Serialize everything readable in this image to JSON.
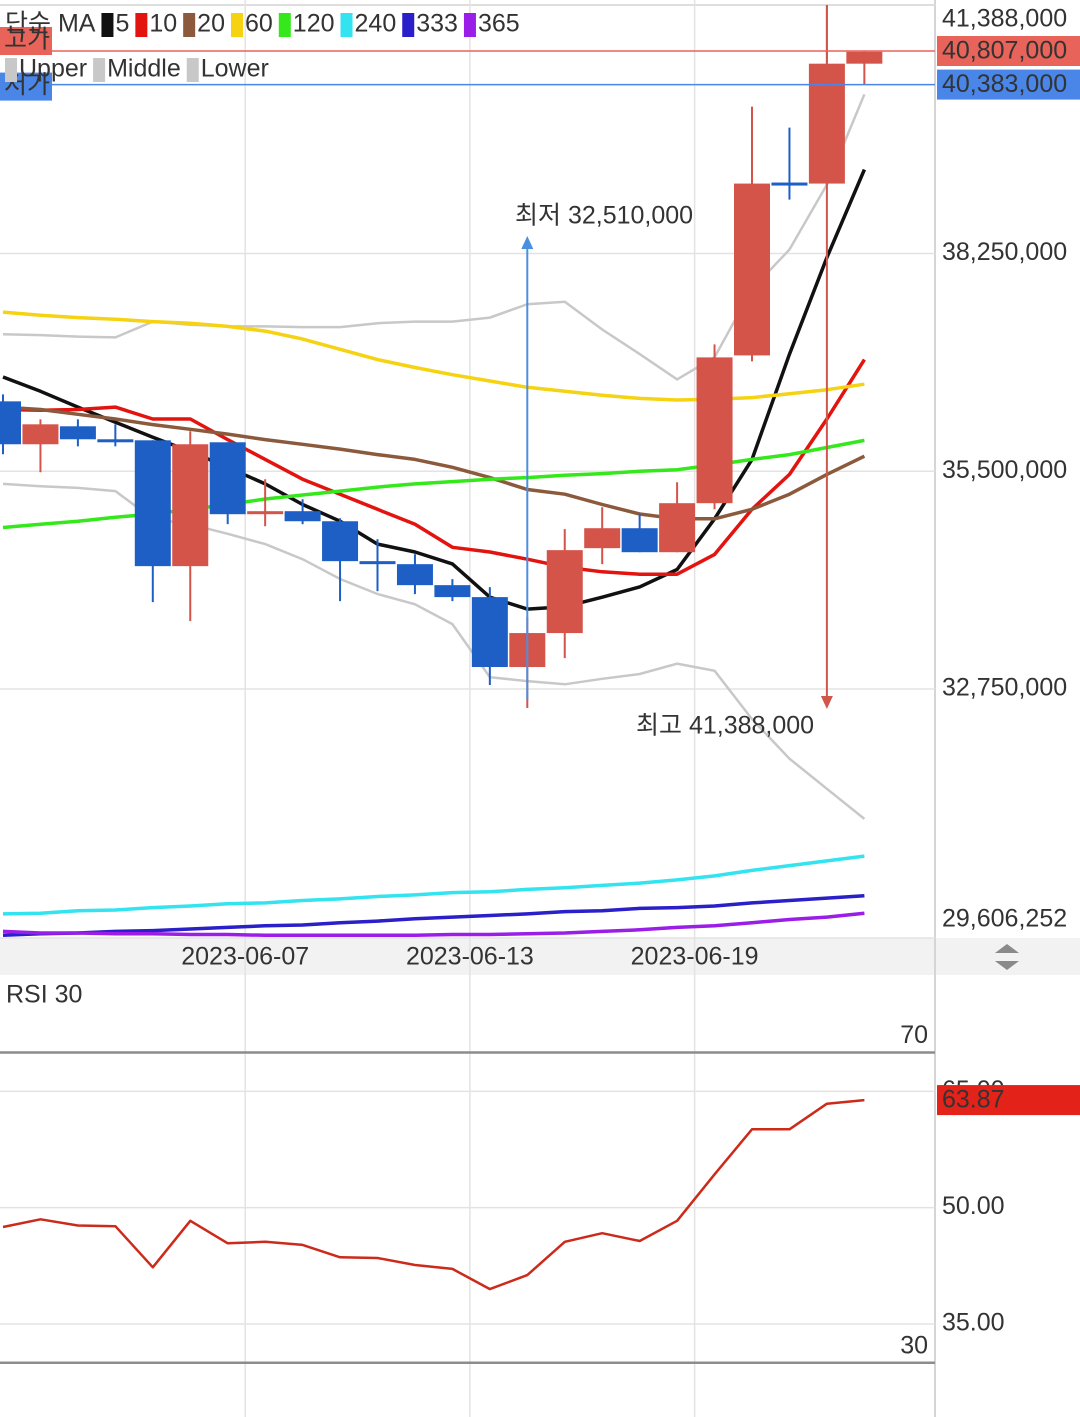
{
  "chart_data": [
    {
      "type": "candlestick",
      "legend_title": "단순 MA",
      "categories": [
        null,
        null,
        null,
        null,
        null,
        null,
        "2023-06-07",
        null,
        null,
        null,
        null,
        null,
        "2023-06-13",
        null,
        null,
        null,
        null,
        null,
        "2023-06-19",
        null,
        null,
        null,
        null,
        null
      ],
      "candles": {
        "up_color": "#d4544a",
        "down_color": "#1e5fc6",
        "open": [
          36383000,
          35841000,
          36068000,
          35904000,
          35891000,
          34302000,
          35866000,
          34958000,
          34996000,
          34869000,
          34365000,
          34327000,
          34062000,
          33911000,
          33028000,
          33457000,
          34529000,
          34781000,
          34478000,
          35097000,
          36963000,
          39146000,
          39133000,
          40647000
        ],
        "high": [
          36471000,
          36156000,
          36156000,
          36093000,
          35891000,
          36005000,
          35866000,
          35399000,
          35147000,
          34907000,
          34642000,
          34453000,
          34138000,
          34037000,
          33659000,
          34769000,
          35046000,
          34958000,
          35361000,
          37102000,
          40104000,
          39839000,
          41388000,
          40807000
        ],
        "low": [
          35715000,
          35488000,
          35815000,
          35815000,
          33848000,
          33608000,
          34832000,
          34806000,
          34832000,
          33860000,
          33986000,
          33949000,
          33860000,
          32801000,
          32510000,
          33141000,
          34327000,
          34478000,
          34478000,
          35021000,
          36888000,
          38931000,
          39108000,
          40383000
        ],
        "close": [
          35841000,
          36093000,
          35904000,
          35866000,
          34302000,
          35841000,
          34958000,
          34996000,
          34869000,
          34365000,
          34327000,
          34062000,
          33911000,
          33028000,
          33457000,
          34504000,
          34781000,
          34478000,
          35097000,
          36938000,
          39133000,
          39108000,
          40647000,
          40798000
        ]
      },
      "series": [
        {
          "name": "5",
          "color": "#111111",
          "values": [
            36690000,
            36510000,
            36310000,
            36120000,
            35930000,
            35750000,
            35550000,
            35340000,
            35080000,
            34870000,
            34580000,
            34480000,
            34330000,
            33910000,
            33760000,
            33790000,
            33910000,
            34040000,
            34260000,
            34900000,
            35650000,
            36980000,
            38200000,
            39310000
          ]
        },
        {
          "name": "10",
          "color": "#e3140f",
          "values": [
            36280000,
            36270000,
            36280000,
            36310000,
            36160000,
            36160000,
            35900000,
            35650000,
            35400000,
            35210000,
            35020000,
            34830000,
            34540000,
            34480000,
            34390000,
            34290000,
            34230000,
            34200000,
            34200000,
            34450000,
            35020000,
            35460000,
            36160000,
            36910000
          ]
        },
        {
          "name": "20",
          "color": "#8b5a3c",
          "values": [
            36310000,
            36280000,
            36220000,
            36160000,
            36090000,
            36030000,
            35970000,
            35900000,
            35840000,
            35780000,
            35710000,
            35650000,
            35550000,
            35420000,
            35270000,
            35210000,
            35080000,
            34960000,
            34900000,
            34900000,
            35020000,
            35210000,
            35460000,
            35690000
          ]
        },
        {
          "name": "60",
          "color": "#f5d312",
          "values": [
            37510000,
            37470000,
            37440000,
            37420000,
            37390000,
            37370000,
            37330000,
            37270000,
            37170000,
            37040000,
            36910000,
            36810000,
            36720000,
            36640000,
            36560000,
            36510000,
            36460000,
            36420000,
            36400000,
            36410000,
            36430000,
            36480000,
            36530000,
            36600000
          ]
        },
        {
          "name": "120",
          "color": "#35e81c",
          "values": [
            34790000,
            34830000,
            34870000,
            34920000,
            34960000,
            35020000,
            35080000,
            35150000,
            35200000,
            35250000,
            35300000,
            35340000,
            35370000,
            35400000,
            35420000,
            35450000,
            35470000,
            35500000,
            35520000,
            35580000,
            35650000,
            35710000,
            35800000,
            35890000
          ]
        },
        {
          "name": "240",
          "color": "#33e3f0",
          "values": [
            29910000,
            29920000,
            29950000,
            29960000,
            29990000,
            30010000,
            30040000,
            30050000,
            30080000,
            30100000,
            30130000,
            30150000,
            30180000,
            30190000,
            30220000,
            30240000,
            30270000,
            30300000,
            30340000,
            30390000,
            30460000,
            30520000,
            30580000,
            30640000
          ]
        },
        {
          "name": "333",
          "color": "#2a1fc8",
          "values": [
            29640000,
            29660000,
            29670000,
            29690000,
            29700000,
            29720000,
            29740000,
            29760000,
            29770000,
            29800000,
            29820000,
            29850000,
            29870000,
            29890000,
            29910000,
            29940000,
            29950000,
            29980000,
            29990000,
            30010000,
            30050000,
            30080000,
            30110000,
            30140000
          ]
        },
        {
          "name": "365",
          "color": "#9a1ee8",
          "values": [
            29690000,
            29670000,
            29670000,
            29660000,
            29660000,
            29650000,
            29650000,
            29640000,
            29640000,
            29640000,
            29640000,
            29640000,
            29650000,
            29650000,
            29660000,
            29670000,
            29690000,
            29710000,
            29740000,
            29760000,
            29800000,
            29840000,
            29870000,
            29920000
          ]
        }
      ],
      "bands": {
        "names": [
          "Upper",
          "Middle",
          "Lower"
        ],
        "color": "#c8c8c8",
        "upper": [
          37230000,
          37220000,
          37200000,
          37190000,
          37390000,
          37350000,
          37330000,
          37330000,
          37320000,
          37320000,
          37370000,
          37390000,
          37390000,
          37440000,
          37610000,
          37640000,
          37290000,
          36980000,
          36660000,
          36940000,
          37800000,
          38300000,
          39120000,
          40260000
        ],
        "lower": [
          35340000,
          35310000,
          35290000,
          35250000,
          34900000,
          34830000,
          34710000,
          34580000,
          34390000,
          34140000,
          33950000,
          33820000,
          33570000,
          32900000,
          32850000,
          32810000,
          32880000,
          32940000,
          33070000,
          32980000,
          32370000,
          31870000,
          31490000,
          31110000
        ]
      },
      "ylim": [
        29606252,
        41388000
      ],
      "yticks": [
        {
          "value": 41388000,
          "label": "41,388,000"
        },
        {
          "value": 38250000,
          "label": "38,250,000"
        },
        {
          "value": 35500000,
          "label": "35,500,000"
        },
        {
          "value": 32750000,
          "label": "32,750,000"
        },
        {
          "value": 29606252,
          "label": "29,606,252"
        }
      ],
      "grid": true,
      "price_lines": [
        {
          "label": "고가",
          "value": 40807000,
          "value_label": "40,807,000",
          "color": "#e8645a"
        },
        {
          "label": "저가",
          "value": 40383000,
          "value_label": "40,383,000",
          "color": "#4a86e8"
        }
      ],
      "annotations": [
        {
          "text": "최저 32,510,000",
          "color": "#4a90e2"
        },
        {
          "text": "최고 41,388,000",
          "color": "#d0574b"
        }
      ]
    },
    {
      "type": "line",
      "title": "RSI 30",
      "color": "#cc2a1a",
      "tag_color": "#e3231a",
      "values": [
        47.5,
        48.5,
        47.7,
        47.6,
        42.3,
        48.3,
        45.4,
        45.6,
        45.2,
        43.6,
        43.5,
        42.6,
        42.1,
        39.5,
        41.3,
        45.6,
        46.7,
        45.7,
        48.3,
        54.3,
        60.1,
        60.1,
        63.4,
        63.87
      ],
      "ylim": [
        23,
        80
      ],
      "yticks": [
        {
          "value": 65,
          "label": "65.00"
        },
        {
          "value": 50,
          "label": "50.00"
        },
        {
          "value": 35,
          "label": "35.00"
        }
      ],
      "reference_lines": [
        70,
        30
      ]
    }
  ]
}
